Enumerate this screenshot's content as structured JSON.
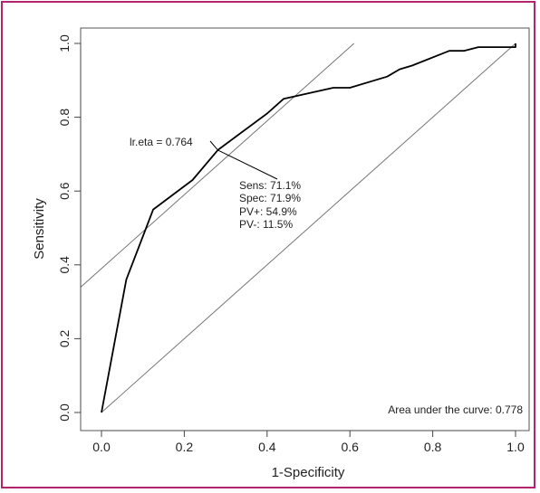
{
  "chart_data": {
    "type": "line",
    "xlabel": "1-Specificity",
    "ylabel": "Sensitivity",
    "xlim": [
      0.0,
      1.0
    ],
    "ylim": [
      0.0,
      1.0
    ],
    "x_ticks": [
      "0.0",
      "0.2",
      "0.4",
      "0.6",
      "0.8",
      "1.0"
    ],
    "y_ticks": [
      "0.0",
      "0.2",
      "0.4",
      "0.6",
      "0.8",
      "1.0"
    ],
    "grid": false,
    "series": [
      {
        "values": [
          [
            0.0,
            0.0
          ],
          [
            0.06,
            0.36
          ],
          [
            0.125,
            0.55
          ],
          [
            0.22,
            0.63
          ],
          [
            0.281,
            0.711
          ],
          [
            0.4,
            0.81
          ],
          [
            0.44,
            0.85
          ],
          [
            0.56,
            0.88
          ],
          [
            0.6,
            0.88
          ],
          [
            0.69,
            0.91
          ],
          [
            0.72,
            0.93
          ],
          [
            0.75,
            0.94
          ],
          [
            0.84,
            0.98
          ],
          [
            0.875,
            0.98
          ],
          [
            0.91,
            0.99
          ],
          [
            1.0,
            0.99
          ],
          [
            1.0,
            1.0
          ]
        ]
      }
    ],
    "reference_lines": [
      {
        "label": "diagonal",
        "x": [
          0.0,
          1.0
        ],
        "y": [
          0.0,
          1.0
        ]
      },
      {
        "label": "tangent",
        "x": [
          -0.1,
          0.61
        ],
        "y": [
          0.29,
          1.0
        ]
      }
    ],
    "cutoff_point": {
      "x": 0.281,
      "y": 0.711
    },
    "annotations": {
      "cutoff_label": "lr.eta = 0.764",
      "stats": [
        "Sens: 71.1%",
        "Spec: 71.9%",
        "PV+: 54.9%",
        "PV-: 11.5%"
      ],
      "auc": "Area under the curve: 0.778"
    },
    "colors": {
      "curve": "#000000",
      "reference": "#777777",
      "frame": "#b5256e"
    }
  }
}
